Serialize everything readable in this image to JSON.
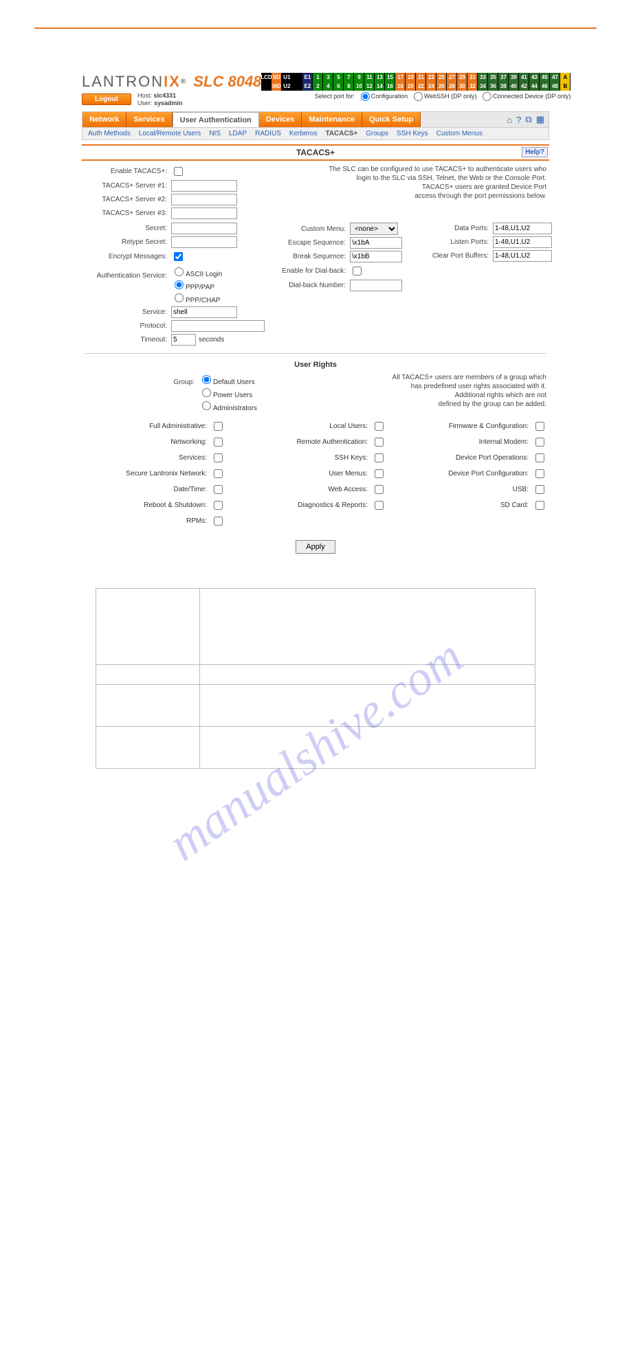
{
  "watermark": "manualshive.com",
  "logo": {
    "brand": "LANTRON",
    "brand_suffix": "IX",
    "product": "SLC 8048",
    "logout": "Logout",
    "host_lbl": "Host:",
    "host": "slc4331",
    "user_lbl": "User:",
    "user": "sysadmin"
  },
  "portgrid": {
    "left_labels": [
      "LCD",
      "SD",
      "MD",
      "U1",
      "U2",
      "E1",
      "E2"
    ],
    "row1": [
      "1",
      "3",
      "5",
      "7",
      "9",
      "11",
      "13",
      "15",
      "17",
      "19",
      "21",
      "23",
      "25",
      "27",
      "29",
      "31",
      "33",
      "35",
      "37",
      "39",
      "41",
      "43",
      "45",
      "47"
    ],
    "row2": [
      "2",
      "4",
      "6",
      "8",
      "10",
      "12",
      "14",
      "16",
      "18",
      "20",
      "22",
      "24",
      "26",
      "28",
      "30",
      "32",
      "34",
      "36",
      "38",
      "40",
      "42",
      "44",
      "46",
      "48"
    ],
    "right_labels": [
      "A",
      "B"
    ]
  },
  "port_select": {
    "label": "Select port for:",
    "opts": [
      "Configuration",
      "WebSSH (DP only)",
      "Connected Device (DP only)"
    ]
  },
  "tabs": [
    "Network",
    "Services",
    "User Authentication",
    "Devices",
    "Maintenance",
    "Quick Setup"
  ],
  "subnav": [
    "Auth Methods",
    "Local/Remote Users",
    "NIS",
    "LDAP",
    "RADIUS",
    "Kerberos",
    "TACACS+",
    "Groups",
    "SSH Keys",
    "Custom Menus"
  ],
  "page_title": "TACACS+",
  "help": "Help?",
  "intro": [
    "The SLC can be configured to use TACACS+ to authenticate users who",
    "login to the SLC via SSH, Telnet, the Web or the Console Port.",
    "TACACS+ users are granted Device Port",
    "access through the port permissions below."
  ],
  "fields": {
    "enable": "Enable TACACS+:",
    "srv1": "TACACS+ Server #1:",
    "srv2": "TACACS+ Server #2:",
    "srv3": "TACACS+ Server #3:",
    "secret": "Secret:",
    "retype": "Retype Secret:",
    "encrypt": "Encrypt Messages:",
    "auth_svc": "Authentication Service:",
    "ascii": "ASCII Login",
    "ppppap": "PPP/PAP",
    "pppchap": "PPP/CHAP",
    "service": "Service:",
    "service_val": "shell",
    "protocol": "Protocol:",
    "timeout": "Timeout:",
    "timeout_val": "5",
    "seconds": "seconds",
    "custom_menu": "Custom Menu:",
    "custom_menu_val": "<none>",
    "escape": "Escape Sequence:",
    "escape_val": "\\x1bA",
    "break": "Break Sequence:",
    "break_val": "\\x1bB",
    "dialback_en": "Enable for Dial-back:",
    "dialback_num": "Dial-back Number:",
    "data_ports": "Data Ports:",
    "data_ports_val": "1-48,U1,U2",
    "listen_ports": "Listen Ports:",
    "listen_ports_val": "1-48,U1,U2",
    "clear_buf": "Clear Port Buffers:",
    "clear_buf_val": "1-48,U1,U2"
  },
  "rights": {
    "title": "User Rights",
    "group_lbl": "Group:",
    "groups": [
      "Default Users",
      "Power Users",
      "Administrators"
    ],
    "note": [
      "All TACACS+ users are members of a group which",
      "has predefined user rights associated with it.",
      "Additional rights which are not",
      "defined by the group can be added."
    ],
    "col1": [
      "Full Administrative:",
      "Networking:",
      "Services:",
      "Secure Lantronix Network:",
      "Date/Time:",
      "Reboot & Shutdown:",
      "RPMs:"
    ],
    "col2": [
      "Local Users:",
      "Remote Authentication:",
      "SSH Keys:",
      "User Menus:",
      "Web Access:",
      "Diagnostics & Reports:"
    ],
    "col3": [
      "Firmware & Configuration:",
      "Internal Modem:",
      "Device Port Operations:",
      "Device Port Configuration:",
      "USB:",
      "SD Card:"
    ]
  },
  "apply": "Apply"
}
